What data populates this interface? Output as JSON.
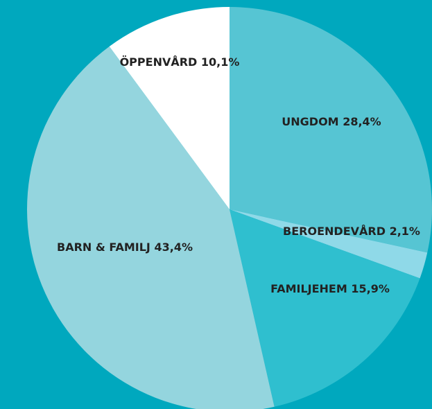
{
  "chart_data": {
    "type": "pie",
    "categories": [
      "UNGDOM",
      "BEROENDEVÅRD",
      "FAMILJEHEM",
      "BARN & FAMILJ",
      "ÖPPENVÅRD"
    ],
    "values": [
      28.4,
      2.1,
      15.9,
      43.4,
      10.1
    ],
    "value_labels": [
      "28,4%",
      "2,1%",
      "15,9%",
      "43,4%",
      "10,1%"
    ],
    "colors": [
      "#56c5d3",
      "#8fd9e8",
      "#2fbfcf",
      "#94d5de",
      "#ffffff"
    ],
    "background": "#00a8be"
  }
}
